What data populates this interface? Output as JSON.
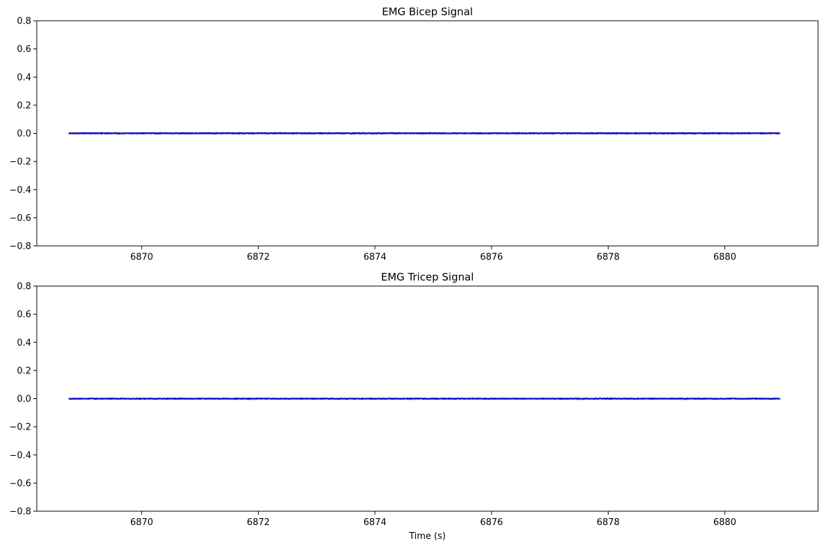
{
  "chart_data": [
    {
      "type": "line",
      "title": "EMG Bicep Signal",
      "xlabel": "",
      "ylabel": "",
      "xlim": [
        6868.2,
        6881.6
      ],
      "ylim": [
        -0.8,
        0.8
      ],
      "x_ticks": [
        "6870",
        "6872",
        "6874",
        "6876",
        "6878",
        "6880"
      ],
      "y_ticks": [
        "0.8",
        "0.6",
        "0.4",
        "0.2",
        "0.0",
        "−0.2",
        "−0.4",
        "−0.6",
        "−0.8"
      ],
      "grid": false,
      "series": [
        {
          "color": "#808080",
          "style": "raw noisy signal (gray)",
          "x_range": [
            6868.75,
            6880.95
          ],
          "values_approx": {
            "mean": -0.002,
            "amplitude": 0.006
          }
        },
        {
          "color": "#0000cc",
          "style": "smoothed signal (blue)",
          "x_range": [
            6868.75,
            6880.95
          ],
          "values_approx": {
            "mean": 0.001,
            "amplitude": 0.002
          }
        }
      ]
    },
    {
      "type": "line",
      "title": "EMG Tricep Signal",
      "xlabel": "Time (s)",
      "ylabel": "",
      "xlim": [
        6868.2,
        6881.6
      ],
      "ylim": [
        -0.8,
        0.8
      ],
      "x_ticks": [
        "6870",
        "6872",
        "6874",
        "6876",
        "6878",
        "6880"
      ],
      "y_ticks": [
        "0.8",
        "0.6",
        "0.4",
        "0.2",
        "0.0",
        "−0.2",
        "−0.4",
        "−0.6",
        "−0.8"
      ],
      "grid": false,
      "series": [
        {
          "color": "#808080",
          "style": "raw noisy signal (gray)",
          "x_range": [
            6868.75,
            6880.95
          ],
          "values_approx": {
            "mean": -0.002,
            "amplitude": 0.006
          }
        },
        {
          "color": "#0000cc",
          "style": "smoothed signal (blue)",
          "x_range": [
            6868.75,
            6880.95
          ],
          "values_approx": {
            "mean": 0.0,
            "amplitude": 0.002
          }
        }
      ]
    }
  ]
}
